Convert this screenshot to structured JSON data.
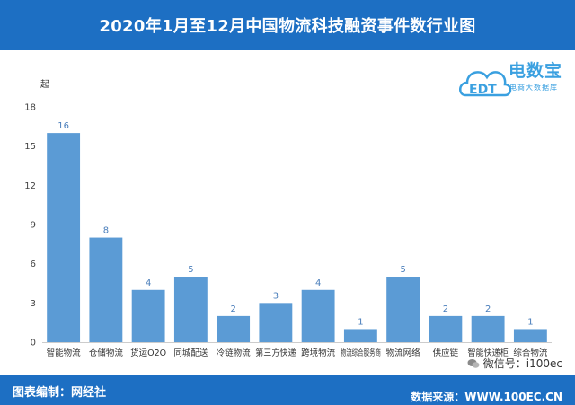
{
  "header": {
    "title": "2020年1月至12月中国物流科技融资事件数行业图"
  },
  "logo": {
    "name": "电数宝",
    "subtitle": "电商大数据库",
    "mark_text": "EDT",
    "color": "#3aa0e0"
  },
  "footer": {
    "left": "图表编制：网经社",
    "right": "数据来源：WWW.100EC.CN",
    "wechat": "微信号：i100ec"
  },
  "colors": {
    "bar": "#5b9bd5",
    "header_bg": "#1d6fc3",
    "label": "#4a7ebb"
  },
  "chart_data": {
    "type": "bar",
    "title": "2020年1月至12月中国物流科技融资事件数行业图",
    "xlabel": "",
    "ylabel": "起",
    "ylim": [
      0,
      18
    ],
    "yticks": [
      0,
      3,
      6,
      9,
      12,
      15,
      18
    ],
    "grid": false,
    "categories": [
      "智能物流",
      "仓储物流",
      "货运O2O",
      "同城配送",
      "冷链物流",
      "第三方快递",
      "跨境物流",
      "物流综合服务商",
      "物流网络",
      "供应链",
      "智能快递柜",
      "综合物流"
    ],
    "values": [
      16,
      8,
      4,
      5,
      2,
      3,
      4,
      1,
      5,
      2,
      2,
      1
    ]
  }
}
